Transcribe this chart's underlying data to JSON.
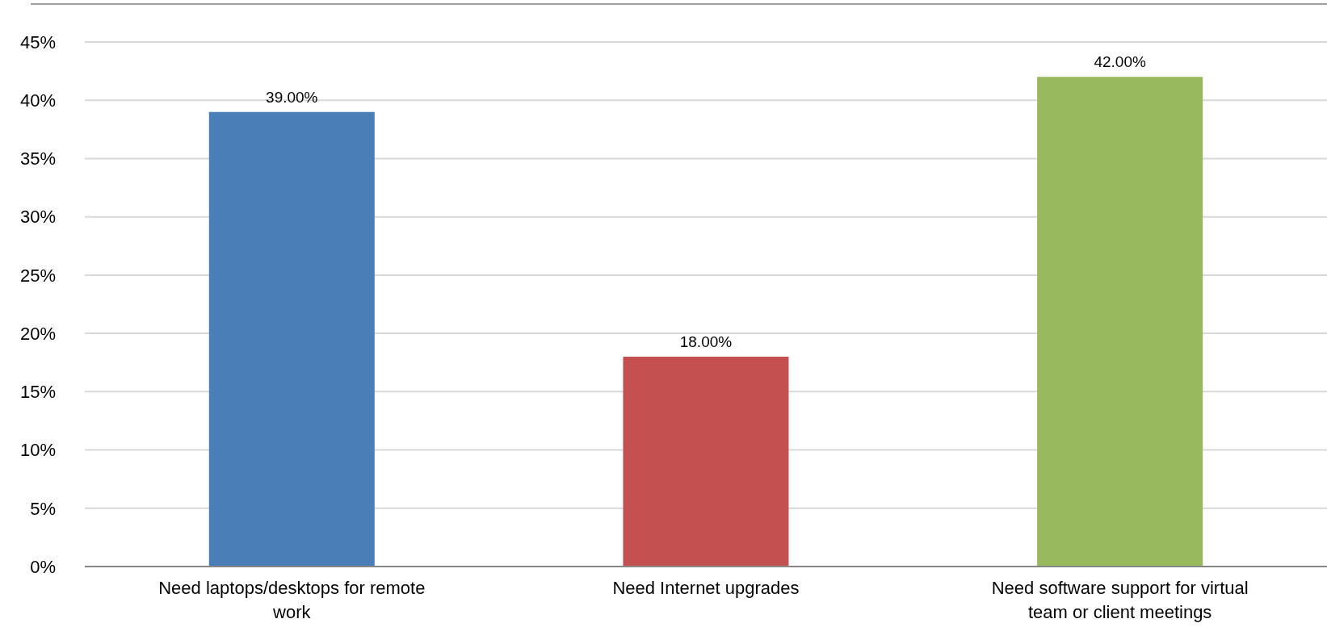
{
  "chart_data": {
    "type": "bar",
    "categories": [
      "Need laptops/desktops for remote work",
      "Need Internet upgrades",
      "Need software support for virtual team or client meetings"
    ],
    "values": [
      39,
      18,
      42
    ],
    "colors": [
      "#4a7eb7",
      "#c4504f",
      "#98b95d"
    ],
    "value_labels": [
      "39.00%",
      "18.00%",
      "42.00%"
    ],
    "ylim": [
      0,
      45
    ],
    "yticks": [
      {
        "value": 0,
        "label": "0%"
      },
      {
        "value": 5,
        "label": "5%"
      },
      {
        "value": 10,
        "label": "10%"
      },
      {
        "value": 15,
        "label": "15%"
      },
      {
        "value": 20,
        "label": "20%"
      },
      {
        "value": 25,
        "label": "25%"
      },
      {
        "value": 30,
        "label": "30%"
      },
      {
        "value": 35,
        "label": "35%"
      },
      {
        "value": 40,
        "label": "40%"
      },
      {
        "value": 45,
        "label": "45%"
      }
    ],
    "grid": "y",
    "legend": false
  }
}
